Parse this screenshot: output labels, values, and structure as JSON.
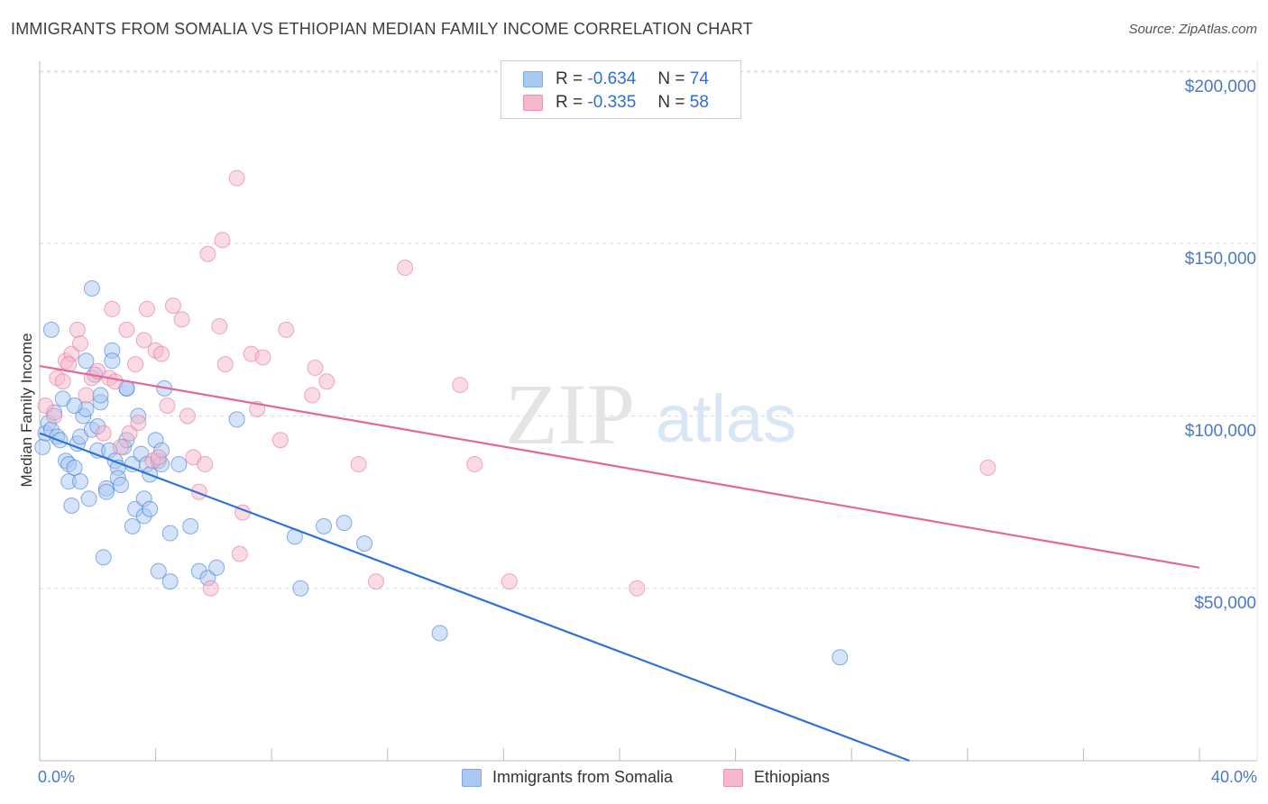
{
  "title": "IMMIGRANTS FROM SOMALIA VS ETHIOPIAN MEDIAN FAMILY INCOME CORRELATION CHART",
  "source": "Source: ZipAtlas.com",
  "watermark": {
    "zip": "ZIP",
    "atlas": "atlas"
  },
  "legend": {
    "r_label": "R =",
    "n_label": "N =",
    "rows": [
      {
        "r": "-0.634",
        "n": "74",
        "color": "#a9c8f2"
      },
      {
        "r": "-0.335",
        "n": "58",
        "color": "#f6b8ca"
      }
    ]
  },
  "bottom_legend": [
    {
      "label": "Immigrants from Somalia",
      "color": "#a9c8f2"
    },
    {
      "label": "Ethiopians",
      "color": "#f6b8ca"
    }
  ],
  "chart_data": {
    "type": "scatter",
    "title": "IMMIGRANTS FROM SOMALIA VS ETHIOPIAN MEDIAN FAMILY INCOME CORRELATION CHART",
    "xlabel": "",
    "ylabel": "Median Family Income",
    "xlim": [
      0,
      40
    ],
    "ylim": [
      0,
      200000
    ],
    "x_tick_labels": [
      "0.0%",
      "40.0%"
    ],
    "y_ticks": [
      {
        "value": 50000,
        "label": "$50,000"
      },
      {
        "value": 100000,
        "label": "$100,000"
      },
      {
        "value": 150000,
        "label": "$150,000"
      },
      {
        "value": 200000,
        "label": "$200,000"
      }
    ],
    "grid": true,
    "series": [
      {
        "name": "Immigrants from Somalia",
        "color": "#2f72d6",
        "fill": "#a9c8f2",
        "trend": [
          [
            0.0,
            95000
          ],
          [
            30.0,
            0
          ]
        ],
        "points": [
          [
            0.1,
            91000
          ],
          [
            0.2,
            95000
          ],
          [
            0.3,
            98000
          ],
          [
            0.4,
            96000
          ],
          [
            0.5,
            101000
          ],
          [
            0.4,
            125000
          ],
          [
            0.6,
            94000
          ],
          [
            0.7,
            93000
          ],
          [
            0.8,
            105000
          ],
          [
            0.9,
            87000
          ],
          [
            1.0,
            86000
          ],
          [
            1.0,
            81000
          ],
          [
            1.1,
            74000
          ],
          [
            1.2,
            85000
          ],
          [
            1.3,
            92000
          ],
          [
            1.4,
            81000
          ],
          [
            1.4,
            94000
          ],
          [
            1.5,
            100000
          ],
          [
            1.6,
            116000
          ],
          [
            1.6,
            102000
          ],
          [
            1.7,
            76000
          ],
          [
            1.8,
            137000
          ],
          [
            1.8,
            96000
          ],
          [
            1.9,
            112000
          ],
          [
            2.0,
            90000
          ],
          [
            2.1,
            104000
          ],
          [
            2.1,
            106000
          ],
          [
            2.2,
            59000
          ],
          [
            2.3,
            79000
          ],
          [
            2.3,
            78000
          ],
          [
            2.4,
            90000
          ],
          [
            2.5,
            119000
          ],
          [
            2.5,
            116000
          ],
          [
            2.6,
            87000
          ],
          [
            2.7,
            85000
          ],
          [
            2.7,
            82000
          ],
          [
            2.8,
            80000
          ],
          [
            2.9,
            91000
          ],
          [
            3.0,
            108000
          ],
          [
            3.0,
            108000
          ],
          [
            3.2,
            68000
          ],
          [
            3.2,
            86000
          ],
          [
            3.3,
            73000
          ],
          [
            3.4,
            100000
          ],
          [
            3.5,
            89000
          ],
          [
            3.6,
            71000
          ],
          [
            3.6,
            76000
          ],
          [
            3.7,
            86000
          ],
          [
            3.8,
            83000
          ],
          [
            3.8,
            73000
          ],
          [
            4.0,
            93000
          ],
          [
            4.1,
            87000
          ],
          [
            4.1,
            55000
          ],
          [
            4.2,
            86000
          ],
          [
            4.2,
            90000
          ],
          [
            4.3,
            108000
          ],
          [
            4.5,
            52000
          ],
          [
            4.5,
            66000
          ],
          [
            4.8,
            86000
          ],
          [
            5.2,
            68000
          ],
          [
            5.5,
            55000
          ],
          [
            5.8,
            53000
          ],
          [
            6.1,
            56000
          ],
          [
            6.8,
            99000
          ],
          [
            8.8,
            65000
          ],
          [
            9.0,
            50000
          ],
          [
            9.8,
            68000
          ],
          [
            10.5,
            69000
          ],
          [
            11.2,
            63000
          ],
          [
            13.8,
            37000
          ],
          [
            27.6,
            30000
          ],
          [
            3.0,
            93000
          ],
          [
            1.2,
            103000
          ],
          [
            2.0,
            97000
          ]
        ]
      },
      {
        "name": "Ethiopians",
        "color": "#e0699a",
        "fill": "#f6b8ca",
        "trend": [
          [
            0.0,
            114500
          ],
          [
            40.0,
            56000
          ]
        ],
        "points": [
          [
            0.2,
            103000
          ],
          [
            0.5,
            100000
          ],
          [
            0.6,
            111000
          ],
          [
            0.8,
            110000
          ],
          [
            0.9,
            116000
          ],
          [
            1.1,
            118000
          ],
          [
            1.3,
            125000
          ],
          [
            1.4,
            121000
          ],
          [
            1.6,
            106000
          ],
          [
            1.8,
            111000
          ],
          [
            2.0,
            113000
          ],
          [
            2.2,
            95000
          ],
          [
            2.4,
            111000
          ],
          [
            2.5,
            131000
          ],
          [
            2.6,
            110000
          ],
          [
            2.8,
            91000
          ],
          [
            3.0,
            125000
          ],
          [
            3.1,
            95000
          ],
          [
            3.3,
            115000
          ],
          [
            3.4,
            98000
          ],
          [
            3.6,
            122000
          ],
          [
            3.7,
            131000
          ],
          [
            3.9,
            87000
          ],
          [
            4.0,
            119000
          ],
          [
            4.2,
            118000
          ],
          [
            4.4,
            103000
          ],
          [
            4.6,
            132000
          ],
          [
            4.9,
            128000
          ],
          [
            5.1,
            100000
          ],
          [
            5.3,
            88000
          ],
          [
            5.5,
            78000
          ],
          [
            5.7,
            86000
          ],
          [
            5.8,
            147000
          ],
          [
            5.9,
            50000
          ],
          [
            6.2,
            126000
          ],
          [
            6.3,
            151000
          ],
          [
            6.4,
            115000
          ],
          [
            6.8,
            169000
          ],
          [
            6.9,
            60000
          ],
          [
            7.0,
            72000
          ],
          [
            7.3,
            118000
          ],
          [
            7.5,
            102000
          ],
          [
            7.7,
            117000
          ],
          [
            8.3,
            93000
          ],
          [
            8.5,
            125000
          ],
          [
            9.4,
            106000
          ],
          [
            9.5,
            114000
          ],
          [
            9.9,
            110000
          ],
          [
            11.0,
            86000
          ],
          [
            11.6,
            52000
          ],
          [
            12.6,
            143000
          ],
          [
            14.5,
            109000
          ],
          [
            15.0,
            86000
          ],
          [
            16.2,
            52000
          ],
          [
            20.6,
            50000
          ],
          [
            32.7,
            85000
          ],
          [
            1.0,
            115000
          ],
          [
            4.1,
            88000
          ]
        ]
      }
    ]
  }
}
